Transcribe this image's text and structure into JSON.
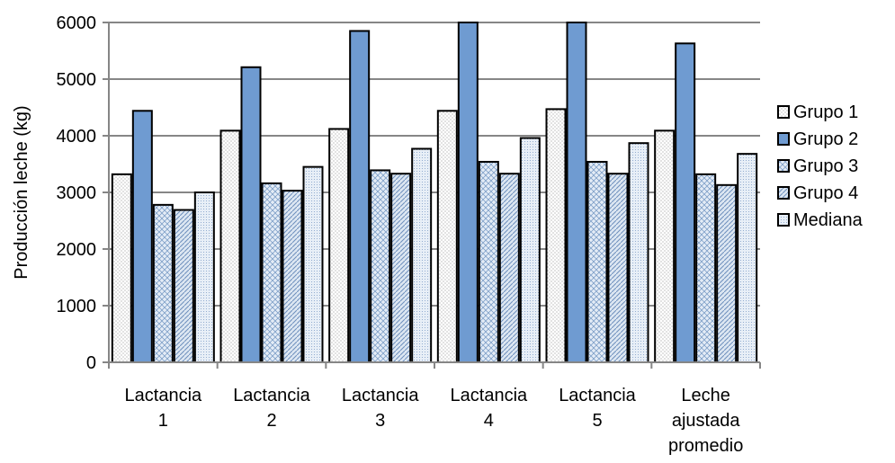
{
  "chart_data": {
    "type": "bar",
    "title": "",
    "xlabel": "",
    "ylabel": "Producción leche (kg)",
    "ylim": [
      0,
      6000
    ],
    "yticks": [
      0,
      1000,
      2000,
      3000,
      4000,
      5000,
      6000
    ],
    "grid": true,
    "legend_position": "right",
    "categories": [
      [
        "Lactancia",
        "1"
      ],
      [
        "Lactancia",
        "2"
      ],
      [
        "Lactancia",
        "3"
      ],
      [
        "Lactancia",
        "4"
      ],
      [
        "Lactancia",
        "5"
      ],
      [
        "Leche",
        "ajustada",
        "promedio"
      ]
    ],
    "series": [
      {
        "name": "Grupo 1",
        "pattern": "dots",
        "color": "#ffffff",
        "values": [
          3320,
          4090,
          4120,
          4440,
          4470,
          4090
        ]
      },
      {
        "name": "Grupo 2",
        "pattern": "solid",
        "color": "#6f9bd1",
        "values": [
          4440,
          5210,
          5850,
          6000,
          6000,
          5630
        ]
      },
      {
        "name": "Grupo 3",
        "pattern": "diamonds",
        "color": "#b8cde6",
        "values": [
          2780,
          3160,
          3390,
          3540,
          3540,
          3320
        ]
      },
      {
        "name": "Grupo 4",
        "pattern": "diagonal",
        "color": "#c9d7e8",
        "values": [
          2690,
          3030,
          3330,
          3330,
          3330,
          3130
        ]
      },
      {
        "name": "Mediana",
        "pattern": "finedots",
        "color": "#d6e2ef",
        "values": [
          3000,
          3450,
          3770,
          3960,
          3870,
          3680
        ]
      }
    ]
  }
}
